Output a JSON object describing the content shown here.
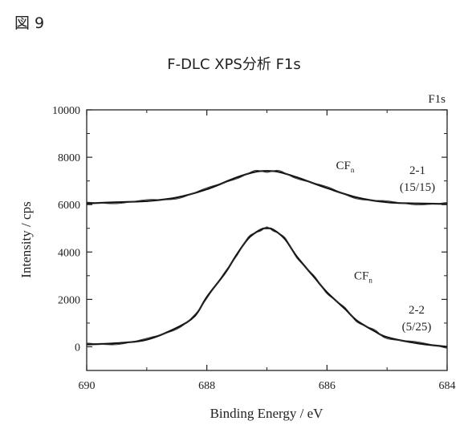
{
  "figure_label": "図 9",
  "chart_data": {
    "type": "line",
    "title": "F-DLC XPS分析 F1s",
    "corner_label": "F1s",
    "xlabel": "Binding Energy / eV",
    "ylabel": "Intensity / cps",
    "xlim": [
      690,
      684
    ],
    "ylim": [
      -1000,
      10000
    ],
    "xticks": [
      690,
      688,
      686,
      684
    ],
    "yticks": [
      0,
      2000,
      4000,
      6000,
      8000,
      10000
    ],
    "grid": false,
    "series": [
      {
        "label_lines": [
          "2-1",
          "(15/15)"
        ],
        "x": [
          690,
          689.5,
          689,
          688.5,
          688,
          687.5,
          687.2,
          687,
          686.8,
          686.5,
          686,
          685.5,
          685,
          684.5,
          684
        ],
        "y": [
          6050,
          6100,
          6150,
          6300,
          6650,
          7150,
          7380,
          7420,
          7380,
          7150,
          6700,
          6300,
          6100,
          6050,
          6030
        ]
      },
      {
        "label_lines": [
          "2-2",
          "(5/25)"
        ],
        "x": [
          690,
          689.5,
          689,
          688.5,
          688.2,
          688,
          687.7,
          687.5,
          687.3,
          687.1,
          687,
          686.9,
          686.7,
          686.5,
          686.2,
          686,
          685.7,
          685.5,
          685.2,
          685,
          684.5,
          684
        ],
        "y": [
          100,
          150,
          300,
          800,
          1300,
          2100,
          3100,
          3900,
          4600,
          4950,
          5000,
          4950,
          4550,
          3800,
          2900,
          2300,
          1600,
          1100,
          650,
          400,
          150,
          0
        ]
      }
    ],
    "annotations": [
      {
        "text": "CF",
        "sub": "n",
        "x": 685.85,
        "y": 7500
      },
      {
        "text": "CF",
        "sub": "n",
        "x": 685.55,
        "y": 2850
      }
    ]
  }
}
